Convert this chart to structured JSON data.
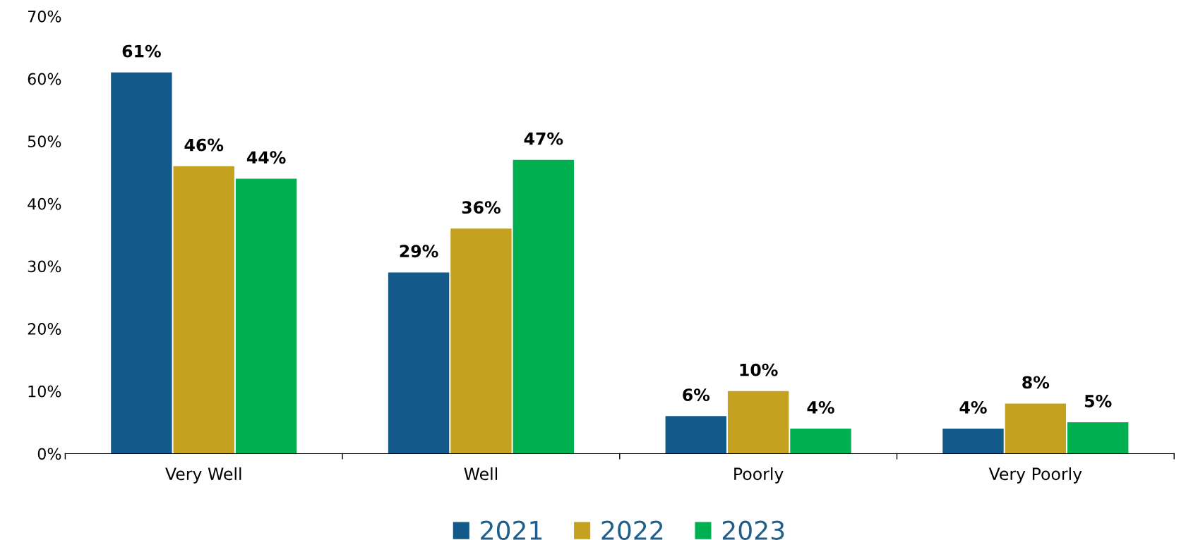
{
  "chart_data": {
    "type": "bar",
    "categories": [
      "Very Well",
      "Well",
      "Poorly",
      "Very Poorly"
    ],
    "series": [
      {
        "name": "2021",
        "color": "#135a8a",
        "values": [
          61,
          29,
          6,
          4
        ],
        "value_labels": [
          "61%",
          "29%",
          "6%",
          "4%"
        ]
      },
      {
        "name": "2022",
        "color": "#c4a21f",
        "values": [
          46,
          36,
          10,
          8
        ],
        "value_labels": [
          "46%",
          "36%",
          "10%",
          "8%"
        ]
      },
      {
        "name": "2023",
        "color": "#00b050",
        "values": [
          44,
          47,
          4,
          5
        ],
        "value_labels": [
          "44%",
          "47%",
          "4%",
          "5%"
        ]
      }
    ],
    "ylim": [
      0,
      70
    ],
    "yticks": [
      {
        "value": 0,
        "label": "0%"
      },
      {
        "value": 10,
        "label": "10%"
      },
      {
        "value": 20,
        "label": "20%"
      },
      {
        "value": 30,
        "label": "30%"
      },
      {
        "value": 40,
        "label": "40%"
      },
      {
        "value": 50,
        "label": "50%"
      },
      {
        "value": 60,
        "label": "60%"
      },
      {
        "value": 70,
        "label": "70%"
      }
    ],
    "grid": false,
    "legend": "bottom"
  }
}
